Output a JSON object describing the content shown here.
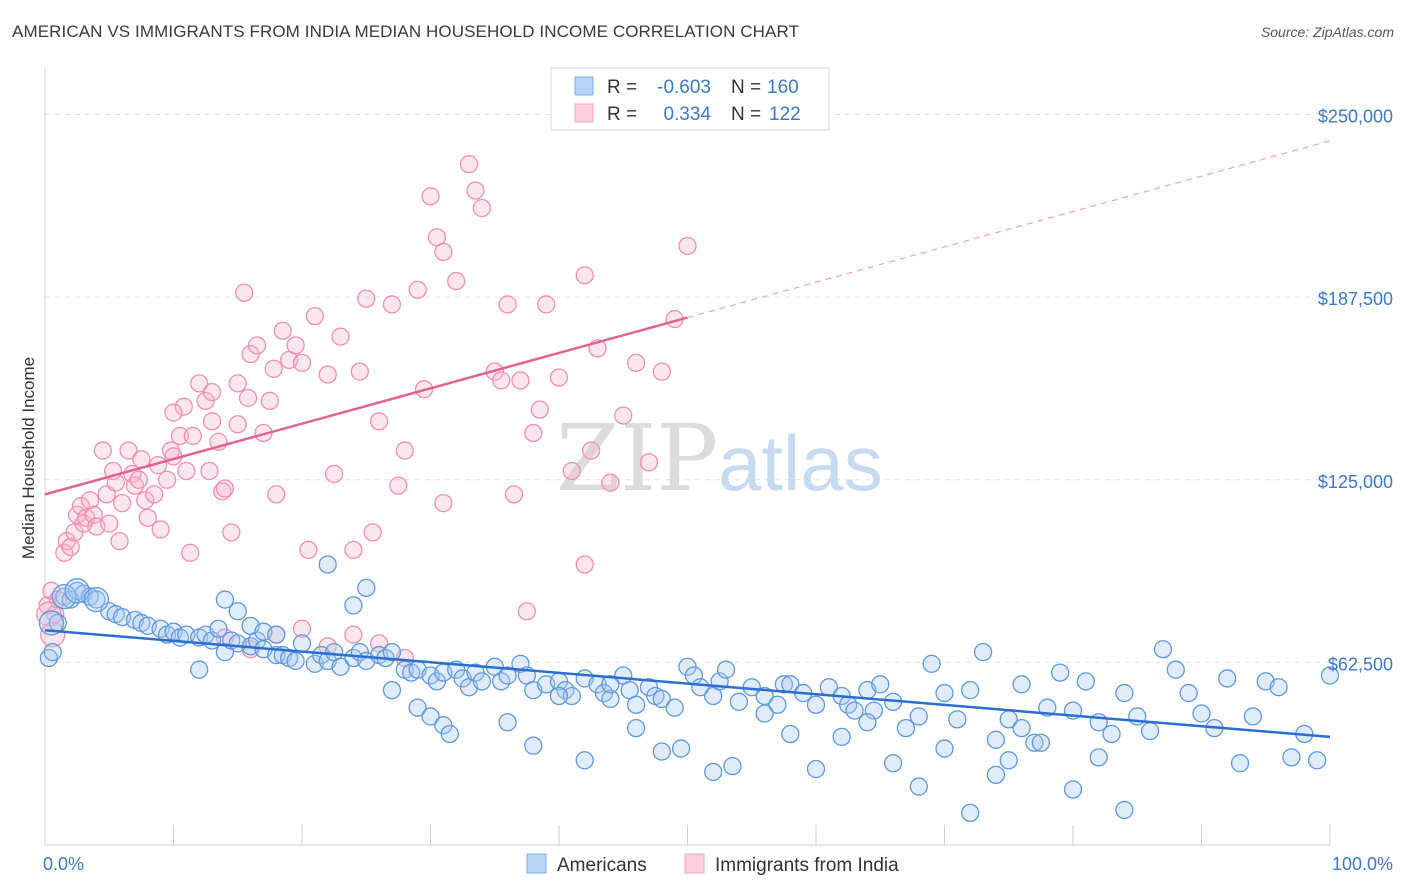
{
  "title": "AMERICAN VS IMMIGRANTS FROM INDIA MEDIAN HOUSEHOLD INCOME CORRELATION CHART",
  "source": "Source: ZipAtlas.com",
  "watermark": {
    "zip": "ZIP",
    "atlas": "atlas"
  },
  "chart_data": {
    "type": "scatter",
    "xlabel": "",
    "ylabel": "Median Household Income",
    "xlim": [
      0,
      100
    ],
    "ylim": [
      0,
      262500
    ],
    "x_tick_labels": {
      "min": "0.0%",
      "max": "100.0%"
    },
    "y_ticks": [
      {
        "value": 62500,
        "label": "$62,500"
      },
      {
        "value": 125000,
        "label": "$125,000"
      },
      {
        "value": 187500,
        "label": "$187,500"
      },
      {
        "value": 250000,
        "label": "$250,000"
      }
    ],
    "grid": true,
    "legend_position": "top-center",
    "series": [
      {
        "name": "Americans",
        "color": "#7aaee8",
        "line_color": "#2a6fd0",
        "R": "-0.603",
        "N": "160",
        "trend": {
          "x": [
            0,
            100
          ],
          "y": [
            73500,
            37000
          ],
          "solid_to": 100
        },
        "points": [
          [
            0.3,
            64
          ],
          [
            0.6,
            66
          ],
          [
            1.0,
            76
          ],
          [
            1.5,
            85
          ],
          [
            2.0,
            84
          ],
          [
            2.5,
            87
          ],
          [
            3,
            86
          ],
          [
            3.5,
            85
          ],
          [
            4,
            84
          ],
          [
            5,
            80
          ],
          [
            5.5,
            79
          ],
          [
            6,
            78
          ],
          [
            7,
            77
          ],
          [
            7.5,
            76
          ],
          [
            8,
            75
          ],
          [
            9,
            74
          ],
          [
            9.5,
            72
          ],
          [
            10,
            73
          ],
          [
            10.5,
            71
          ],
          [
            11,
            72
          ],
          [
            12,
            71
          ],
          [
            12.5,
            72
          ],
          [
            13,
            70
          ],
          [
            13.5,
            74
          ],
          [
            14,
            66
          ],
          [
            14.5,
            70
          ],
          [
            15,
            69
          ],
          [
            16,
            68
          ],
          [
            16.5,
            70
          ],
          [
            17,
            67
          ],
          [
            18,
            65
          ],
          [
            18.5,
            65
          ],
          [
            19,
            64
          ],
          [
            19.5,
            63
          ],
          [
            20,
            69
          ],
          [
            21,
            62
          ],
          [
            21.5,
            65
          ],
          [
            22,
            63
          ],
          [
            22.5,
            66
          ],
          [
            23,
            61
          ],
          [
            24,
            64
          ],
          [
            24.5,
            66
          ],
          [
            25,
            63
          ],
          [
            26,
            65
          ],
          [
            26.5,
            64
          ],
          [
            27,
            66
          ],
          [
            28,
            60
          ],
          [
            28.5,
            59
          ],
          [
            29,
            60
          ],
          [
            30,
            58
          ],
          [
            30.5,
            56
          ],
          [
            31,
            59
          ],
          [
            32,
            60
          ],
          [
            32.5,
            57
          ],
          [
            33,
            54
          ],
          [
            33.5,
            59
          ],
          [
            34,
            56
          ],
          [
            35,
            61
          ],
          [
            35.5,
            56
          ],
          [
            36,
            58
          ],
          [
            37,
            62
          ],
          [
            37.5,
            58
          ],
          [
            38,
            53
          ],
          [
            39,
            55
          ],
          [
            40,
            56
          ],
          [
            40.5,
            53
          ],
          [
            41,
            51
          ],
          [
            42,
            57
          ],
          [
            43,
            55
          ],
          [
            43.5,
            52
          ],
          [
            44,
            50
          ],
          [
            45,
            58
          ],
          [
            45.5,
            53
          ],
          [
            46,
            48
          ],
          [
            47,
            54
          ],
          [
            47.5,
            51
          ],
          [
            48,
            50
          ],
          [
            49,
            47
          ],
          [
            50,
            61
          ],
          [
            50.5,
            58
          ],
          [
            51,
            54
          ],
          [
            52,
            51
          ],
          [
            52.5,
            56
          ],
          [
            53,
            60
          ],
          [
            54,
            49
          ],
          [
            55,
            54
          ],
          [
            56,
            51
          ],
          [
            57,
            48
          ],
          [
            57.5,
            55
          ],
          [
            58,
            55
          ],
          [
            59,
            52
          ],
          [
            60,
            48
          ],
          [
            61,
            54
          ],
          [
            62,
            51
          ],
          [
            62.5,
            48
          ],
          [
            63,
            46
          ],
          [
            64,
            53
          ],
          [
            64.5,
            46
          ],
          [
            65,
            55
          ],
          [
            66,
            49
          ],
          [
            67,
            40
          ],
          [
            68,
            44
          ],
          [
            69,
            62
          ],
          [
            70,
            52
          ],
          [
            71,
            43
          ],
          [
            72,
            53
          ],
          [
            73,
            66
          ],
          [
            74,
            36
          ],
          [
            75,
            43
          ],
          [
            76,
            55
          ],
          [
            77,
            35
          ],
          [
            78,
            47
          ],
          [
            79,
            59
          ],
          [
            80,
            46
          ],
          [
            81,
            56
          ],
          [
            82,
            42
          ],
          [
            83,
            38
          ],
          [
            84,
            52
          ],
          [
            85,
            44
          ],
          [
            86,
            39
          ],
          [
            87,
            67
          ],
          [
            88,
            60
          ],
          [
            89,
            52
          ],
          [
            90,
            45
          ],
          [
            91,
            40
          ],
          [
            92,
            57
          ],
          [
            93,
            28
          ],
          [
            94,
            44
          ],
          [
            95,
            56
          ],
          [
            96,
            54
          ],
          [
            97,
            30
          ],
          [
            98,
            38
          ],
          [
            99,
            29
          ],
          [
            100,
            58
          ],
          [
            14,
            84
          ],
          [
            15,
            80
          ],
          [
            16,
            75
          ],
          [
            17,
            73
          ],
          [
            18,
            72
          ],
          [
            12,
            60
          ],
          [
            22,
            96
          ],
          [
            24,
            82
          ],
          [
            25,
            88
          ],
          [
            27,
            53
          ],
          [
            29,
            47
          ],
          [
            30,
            44
          ],
          [
            31,
            41
          ],
          [
            31.5,
            38
          ],
          [
            36,
            42
          ],
          [
            38,
            34
          ],
          [
            40,
            51
          ],
          [
            42,
            29
          ],
          [
            44,
            55
          ],
          [
            46,
            40
          ],
          [
            48,
            32
          ],
          [
            49.5,
            33
          ],
          [
            52,
            25
          ],
          [
            53.5,
            27
          ],
          [
            56,
            45
          ],
          [
            58,
            38
          ],
          [
            60,
            26
          ],
          [
            62,
            37
          ],
          [
            64,
            42
          ],
          [
            66,
            28
          ],
          [
            68,
            20
          ],
          [
            70,
            33
          ],
          [
            72,
            11
          ],
          [
            74,
            24
          ],
          [
            75,
            29
          ],
          [
            76,
            40
          ],
          [
            77.5,
            35
          ],
          [
            80,
            19
          ],
          [
            82,
            30
          ],
          [
            84,
            12
          ]
        ],
        "bubble_points": [
          [
            1.5,
            85
          ],
          [
            2.5,
            87
          ],
          [
            4,
            84
          ],
          [
            0.5,
            76
          ]
        ]
      },
      {
        "name": "Immigrants from India",
        "color": "#f4a6c0",
        "line_color": "#e3628f",
        "R": "0.334",
        "N": "122",
        "trend": {
          "x": [
            0,
            100
          ],
          "y": [
            120000,
            241000
          ],
          "solid_to": 50
        },
        "points": [
          [
            0.2,
            82
          ],
          [
            0.5,
            87
          ],
          [
            0.8,
            79
          ],
          [
            1,
            84
          ],
          [
            1.5,
            100
          ],
          [
            1.7,
            104
          ],
          [
            2,
            102
          ],
          [
            2.3,
            107
          ],
          [
            2.5,
            113
          ],
          [
            2.8,
            116
          ],
          [
            3,
            110
          ],
          [
            3.2,
            112
          ],
          [
            3.5,
            118
          ],
          [
            3.8,
            113
          ],
          [
            4,
            109
          ],
          [
            4.5,
            135
          ],
          [
            4.8,
            120
          ],
          [
            5,
            110
          ],
          [
            5.3,
            128
          ],
          [
            5.5,
            124
          ],
          [
            5.8,
            104
          ],
          [
            6,
            117
          ],
          [
            6.5,
            135
          ],
          [
            6.8,
            127
          ],
          [
            7,
            123
          ],
          [
            7.3,
            125
          ],
          [
            7.5,
            132
          ],
          [
            7.8,
            118
          ],
          [
            8,
            112
          ],
          [
            8.5,
            120
          ],
          [
            8.8,
            130
          ],
          [
            9,
            108
          ],
          [
            9.5,
            125
          ],
          [
            9.8,
            135
          ],
          [
            10,
            133
          ],
          [
            10.5,
            140
          ],
          [
            10.8,
            150
          ],
          [
            11,
            128
          ],
          [
            11.3,
            100
          ],
          [
            11.5,
            140
          ],
          [
            12,
            158
          ],
          [
            12.5,
            152
          ],
          [
            12.8,
            128
          ],
          [
            13,
            145
          ],
          [
            13.5,
            138
          ],
          [
            13.8,
            121
          ],
          [
            14,
            122
          ],
          [
            14.5,
            107
          ],
          [
            15,
            158
          ],
          [
            15.5,
            189
          ],
          [
            15.8,
            153
          ],
          [
            16,
            168
          ],
          [
            16.5,
            171
          ],
          [
            17,
            141
          ],
          [
            17.5,
            152
          ],
          [
            17.8,
            163
          ],
          [
            18,
            120
          ],
          [
            18.5,
            176
          ],
          [
            19,
            166
          ],
          [
            19.5,
            171
          ],
          [
            20,
            165
          ],
          [
            20.5,
            101
          ],
          [
            21,
            181
          ],
          [
            22,
            161
          ],
          [
            22.5,
            127
          ],
          [
            23,
            174
          ],
          [
            24,
            101
          ],
          [
            24.5,
            162
          ],
          [
            25,
            187
          ],
          [
            25.5,
            107
          ],
          [
            26,
            145
          ],
          [
            27,
            185
          ],
          [
            27.5,
            123
          ],
          [
            28,
            135
          ],
          [
            29,
            190
          ],
          [
            29.5,
            156
          ],
          [
            30,
            222
          ],
          [
            30.5,
            208
          ],
          [
            31,
            203
          ],
          [
            32,
            193
          ],
          [
            33,
            233
          ],
          [
            33.5,
            224
          ],
          [
            34,
            218
          ],
          [
            35,
            162
          ],
          [
            36,
            185
          ],
          [
            36.5,
            120
          ],
          [
            37,
            159
          ],
          [
            38,
            141
          ],
          [
            38.5,
            149
          ],
          [
            39,
            185
          ],
          [
            40,
            160
          ],
          [
            41,
            128
          ],
          [
            42,
            195
          ],
          [
            42.5,
            135
          ],
          [
            43,
            170
          ],
          [
            44,
            124
          ],
          [
            45,
            147
          ],
          [
            46,
            165
          ],
          [
            47,
            131
          ],
          [
            48,
            162
          ],
          [
            49,
            180
          ],
          [
            50,
            205
          ],
          [
            14,
            71
          ],
          [
            16,
            67
          ],
          [
            18,
            72
          ],
          [
            20,
            74
          ],
          [
            22,
            68
          ],
          [
            24,
            72
          ],
          [
            26,
            69
          ],
          [
            28,
            64
          ],
          [
            37.5,
            80
          ],
          [
            42,
            96
          ],
          [
            13,
            155
          ],
          [
            15,
            144
          ],
          [
            10,
            148
          ],
          [
            35.5,
            159
          ],
          [
            31,
            117
          ]
        ],
        "bubble_points": [
          [
            0.3,
            79
          ],
          [
            0.6,
            72
          ]
        ]
      }
    ]
  },
  "legend": {
    "r_label": "R =",
    "n_label": "N =",
    "americans": {
      "r": "-0.603",
      "n": "160"
    },
    "india": {
      "r": "0.334",
      "n": "122"
    }
  },
  "bottom_legend": {
    "americans": "Americans",
    "india": "Immigrants from India"
  }
}
